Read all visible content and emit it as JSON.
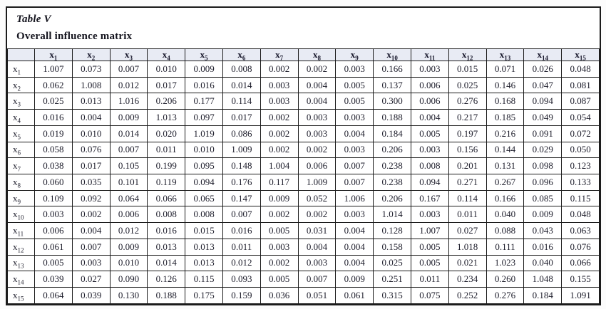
{
  "title": {
    "table_number": "Table V",
    "caption": "Overall influence matrix"
  },
  "colors": {
    "header_bg": "#e8ebf4",
    "border": "#1b1b1b",
    "text": "#1d1d2b"
  },
  "chart_data": {
    "type": "table",
    "title": "Table V — Overall influence matrix",
    "column_headers": [
      "x1",
      "x2",
      "x3",
      "x4",
      "x5",
      "x6",
      "x7",
      "x8",
      "x9",
      "x10",
      "x11",
      "x12",
      "x13",
      "x14",
      "x15"
    ],
    "row_headers": [
      "x1",
      "x2",
      "x3",
      "x4",
      "x5",
      "x6",
      "x7",
      "x8",
      "x9",
      "x10",
      "x11",
      "x12",
      "x13",
      "x14",
      "x15"
    ],
    "rows": [
      [
        "1.007",
        "0.073",
        "0.007",
        "0.010",
        "0.009",
        "0.008",
        "0.002",
        "0.002",
        "0.003",
        "0.166",
        "0.003",
        "0.015",
        "0.071",
        "0.026",
        "0.048"
      ],
      [
        "0.062",
        "1.008",
        "0.012",
        "0.017",
        "0.016",
        "0.014",
        "0.003",
        "0.004",
        "0.005",
        "0.137",
        "0.006",
        "0.025",
        "0.146",
        "0.047",
        "0.081"
      ],
      [
        "0.025",
        "0.013",
        "1.016",
        "0.206",
        "0.177",
        "0.114",
        "0.003",
        "0.004",
        "0.005",
        "0.300",
        "0.006",
        "0.276",
        "0.168",
        "0.094",
        "0.087"
      ],
      [
        "0.016",
        "0.004",
        "0.009",
        "1.013",
        "0.097",
        "0.017",
        "0.002",
        "0.003",
        "0.003",
        "0.188",
        "0.004",
        "0.217",
        "0.185",
        "0.049",
        "0.054"
      ],
      [
        "0.019",
        "0.010",
        "0.014",
        "0.020",
        "1.019",
        "0.086",
        "0.002",
        "0.003",
        "0.004",
        "0.184",
        "0.005",
        "0.197",
        "0.216",
        "0.091",
        "0.072"
      ],
      [
        "0.058",
        "0.076",
        "0.007",
        "0.011",
        "0.010",
        "1.009",
        "0.002",
        "0.002",
        "0.003",
        "0.206",
        "0.003",
        "0.156",
        "0.144",
        "0.029",
        "0.050"
      ],
      [
        "0.038",
        "0.017",
        "0.105",
        "0.199",
        "0.095",
        "0.148",
        "1.004",
        "0.006",
        "0.007",
        "0.238",
        "0.008",
        "0.201",
        "0.131",
        "0.098",
        "0.123"
      ],
      [
        "0.060",
        "0.035",
        "0.101",
        "0.119",
        "0.094",
        "0.176",
        "0.117",
        "1.009",
        "0.007",
        "0.238",
        "0.094",
        "0.271",
        "0.267",
        "0.096",
        "0.133"
      ],
      [
        "0.109",
        "0.092",
        "0.064",
        "0.066",
        "0.065",
        "0.147",
        "0.009",
        "0.052",
        "1.006",
        "0.206",
        "0.167",
        "0.114",
        "0.166",
        "0.085",
        "0.115"
      ],
      [
        "0.003",
        "0.002",
        "0.006",
        "0.008",
        "0.008",
        "0.007",
        "0.002",
        "0.002",
        "0.003",
        "1.014",
        "0.003",
        "0.011",
        "0.040",
        "0.009",
        "0.048"
      ],
      [
        "0.006",
        "0.004",
        "0.012",
        "0.016",
        "0.015",
        "0.016",
        "0.005",
        "0.031",
        "0.004",
        "0.128",
        "1.007",
        "0.027",
        "0.088",
        "0.043",
        "0.063"
      ],
      [
        "0.061",
        "0.007",
        "0.009",
        "0.013",
        "0.013",
        "0.011",
        "0.003",
        "0.004",
        "0.004",
        "0.158",
        "0.005",
        "1.018",
        "0.111",
        "0.016",
        "0.076"
      ],
      [
        "0.005",
        "0.003",
        "0.010",
        "0.014",
        "0.013",
        "0.012",
        "0.002",
        "0.003",
        "0.004",
        "0.025",
        "0.005",
        "0.021",
        "1.023",
        "0.040",
        "0.066"
      ],
      [
        "0.039",
        "0.027",
        "0.090",
        "0.126",
        "0.115",
        "0.093",
        "0.005",
        "0.007",
        "0.009",
        "0.251",
        "0.011",
        "0.234",
        "0.260",
        "1.048",
        "0.155"
      ],
      [
        "0.064",
        "0.039",
        "0.130",
        "0.188",
        "0.175",
        "0.159",
        "0.036",
        "0.051",
        "0.061",
        "0.315",
        "0.075",
        "0.252",
        "0.276",
        "0.184",
        "1.091"
      ]
    ]
  }
}
